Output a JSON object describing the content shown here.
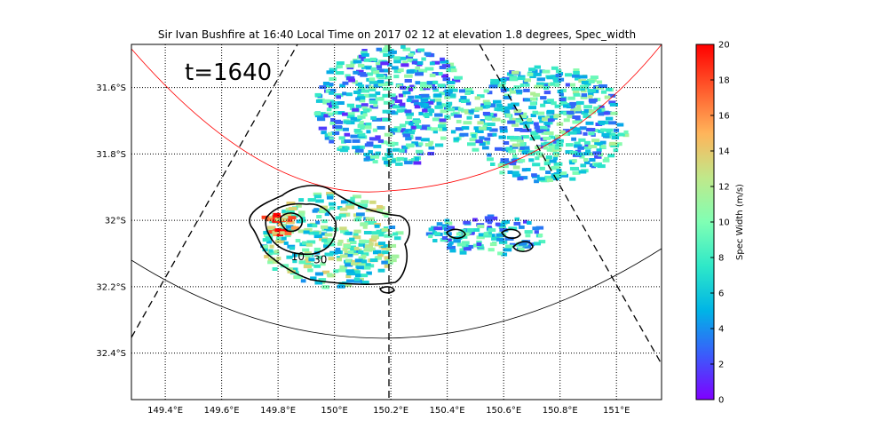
{
  "chart_data": {
    "type": "heatmap",
    "title": "Sir Ivan Bushfire at 16:40 Local Time on 2017 02 12 at elevation 1.8 degrees, Spec_width",
    "annotation": "t=1640",
    "xlim": [
      149.28,
      151.16
    ],
    "ylim": [
      -32.54,
      -31.47
    ],
    "x_ticks": [
      {
        "value": 149.4,
        "label": "149.4°E"
      },
      {
        "value": 149.6,
        "label": "149.6°E"
      },
      {
        "value": 149.8,
        "label": "149.8°E"
      },
      {
        "value": 150.0,
        "label": "150°E"
      },
      {
        "value": 150.2,
        "label": "150.2°E"
      },
      {
        "value": 150.4,
        "label": "150.4°E"
      },
      {
        "value": 150.6,
        "label": "150.6°E"
      },
      {
        "value": 150.8,
        "label": "150.8°E"
      },
      {
        "value": 151.0,
        "label": "151°E"
      }
    ],
    "y_ticks": [
      {
        "value": -31.6,
        "label": "31.6°S"
      },
      {
        "value": -31.8,
        "label": "31.8°S"
      },
      {
        "value": -32.0,
        "label": "32°S"
      },
      {
        "value": -32.2,
        "label": "32.2°S"
      },
      {
        "value": -32.4,
        "label": "32.4°S"
      }
    ],
    "grid": true,
    "colorbar": {
      "label": "Spec Width (m/s)",
      "min": 0,
      "max": 20,
      "ticks": [
        0,
        2,
        4,
        6,
        8,
        10,
        12,
        14,
        16,
        18,
        20
      ],
      "colormap": [
        "#7f00ff",
        "#3b5bfb",
        "#00b4e6",
        "#2ee8c8",
        "#80ffb4",
        "#c0e88a",
        "#ffb45a",
        "#ff5a2c",
        "#ff0000"
      ]
    },
    "contour_labels": [
      {
        "text": "10",
        "lon": 149.87,
        "lat": -32.12
      },
      {
        "text": "30",
        "lon": 149.95,
        "lat": -32.13
      }
    ],
    "echo_regions": [
      {
        "name": "plume-core",
        "lon": [
          149.73,
          150.22
        ],
        "lat": [
          -32.2,
          -31.91
        ],
        "mean_width": 9
      },
      {
        "name": "plume-hot-edge",
        "lon": [
          149.73,
          149.86
        ],
        "lat": [
          -32.04,
          -31.97
        ],
        "mean_width": 17
      },
      {
        "name": "northern-band",
        "lon": [
          149.92,
          150.48
        ],
        "lat": [
          -31.83,
          -31.47
        ],
        "mean_width": 6
      },
      {
        "name": "north-east-streak",
        "lon": [
          150.45,
          151.03
        ],
        "lat": [
          -31.88,
          -31.53
        ],
        "mean_width": 7
      },
      {
        "name": "eastern-cells",
        "lon": [
          150.32,
          150.74
        ],
        "lat": [
          -32.1,
          -31.98
        ],
        "mean_width": 6
      }
    ],
    "range_rings": [
      {
        "name": "outer-ring",
        "color": "#000000"
      },
      {
        "name": "inner-ring",
        "color": "#ff0000"
      }
    ],
    "radials": [
      {
        "name": "radial-1",
        "style": "dashed"
      },
      {
        "name": "radial-2",
        "style": "dashed"
      },
      {
        "name": "radial-3",
        "style": "dashed"
      }
    ]
  }
}
